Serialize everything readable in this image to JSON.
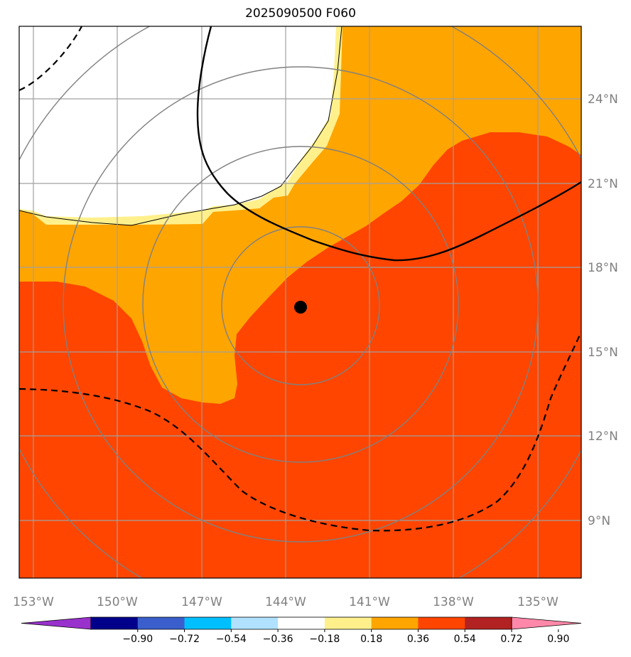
{
  "title": "2025090500 F060",
  "map": {
    "lon_labels": [
      "153°W",
      "150°W",
      "147°W",
      "144°W",
      "141°W",
      "138°W",
      "135°W"
    ],
    "lat_labels": [
      "24°N",
      "21°N",
      "18°N",
      "15°N",
      "12°N",
      "9°N"
    ],
    "center_marker": {
      "lon": -143.5,
      "lat": 16.6
    },
    "range_rings": 4,
    "fill_colors": {
      "white": "#ffffff",
      "light_yellow": "#fff08c",
      "orange": "#ffa500",
      "red_orange": "#ff4500"
    },
    "grid_color": "#a0a0a0",
    "ring_color": "#808080"
  },
  "colorbar": {
    "colors": [
      "#9932cc",
      "#00008b",
      "#3a5fcd",
      "#00bfff",
      "#b0e2ff",
      "#ffffff",
      "#fff08c",
      "#ffa500",
      "#ff4500",
      "#b22222",
      "#ff88aa"
    ],
    "tick_labels": [
      "−0.90",
      "−0.72",
      "−0.54",
      "−0.36",
      "−0.18",
      "0.18",
      "0.36",
      "0.54",
      "0.72",
      "0.90"
    ]
  }
}
